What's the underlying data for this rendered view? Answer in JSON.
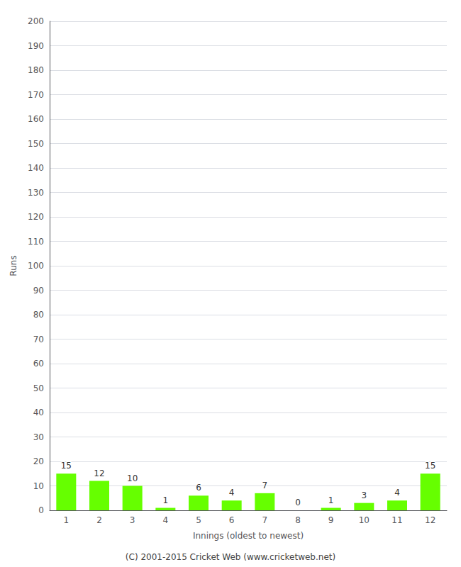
{
  "chart_data": {
    "type": "bar",
    "categories": [
      "1",
      "2",
      "3",
      "4",
      "5",
      "6",
      "7",
      "8",
      "9",
      "10",
      "11",
      "12"
    ],
    "values": [
      15,
      12,
      10,
      1,
      6,
      4,
      7,
      0,
      1,
      3,
      4,
      15
    ],
    "color": "#66ff00",
    "x_label": "Innings (oldest to newest)",
    "y_label": "Runs",
    "ylim": [
      0,
      200
    ],
    "yticks": [
      0,
      10,
      20,
      30,
      40,
      50,
      60,
      70,
      80,
      90,
      100,
      110,
      120,
      130,
      140,
      150,
      160,
      170,
      180,
      190,
      200
    ],
    "grid": true,
    "data_labels": true,
    "annotations": [
      "(C) 2001-2015 Cricket Web (www.cricketweb.net)"
    ]
  }
}
